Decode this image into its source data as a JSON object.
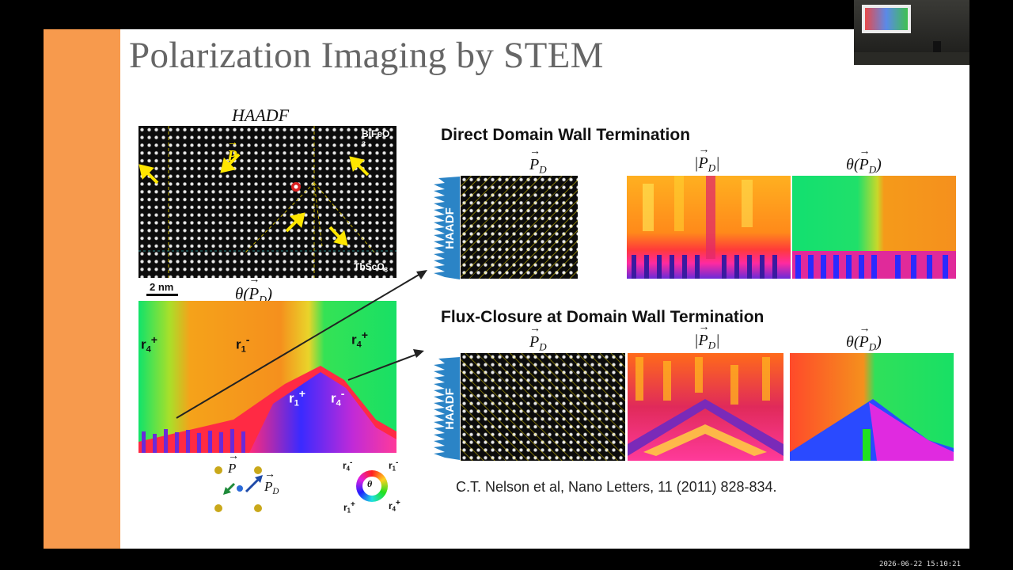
{
  "slide": {
    "title": "Polarization Imaging by STEM",
    "haadf_title": "HAADF",
    "haadf_labels": {
      "top_right": "BiFeO",
      "top_right_sub": "3",
      "bottom_right": "TbScO",
      "bottom_right_sub": "3",
      "p_vector": "P"
    },
    "scale_bar": "2 nm",
    "theta_symbol": "θ",
    "p_symbol": "P",
    "d_subscript": "D",
    "domain_labels": {
      "r4_left": "r",
      "r4_left_sub": "4",
      "r4_left_sup": "+",
      "r1_top": "r",
      "r1_top_sub": "1",
      "r1_top_sup": "-",
      "r4_right": "r",
      "r4_right_sub": "4",
      "r4_right_sup": "+",
      "r1_center": "r",
      "r1_center_sub": "1",
      "r1_center_sup": "+",
      "r4_center": "r",
      "r4_center_sub": "4",
      "r4_center_sup": "-"
    },
    "color_wheel": {
      "tl": "r",
      "tl_sub": "4",
      "tl_sup": "-",
      "tr": "r",
      "tr_sub": "1",
      "tr_sup": "-",
      "bl": "r",
      "bl_sub": "1",
      "bl_sup": "+",
      "br": "r",
      "br_sub": "4",
      "br_sup": "+",
      "center": "θ"
    },
    "sections": {
      "direct": "Direct Domain Wall Termination",
      "flux": "Flux-Closure at Domain Wall Termination"
    },
    "side_tab": "HAADF",
    "citation": "C.T. Nelson et al, Nano Letters, 11 (2011) 828-834."
  },
  "timestamp": "2026-06-22 15:10:21",
  "colors": {
    "accent": "#f79a4d",
    "title": "#666666",
    "tab": "#2b84c6",
    "arrow": "#ffe600",
    "pointer": "#222222"
  }
}
